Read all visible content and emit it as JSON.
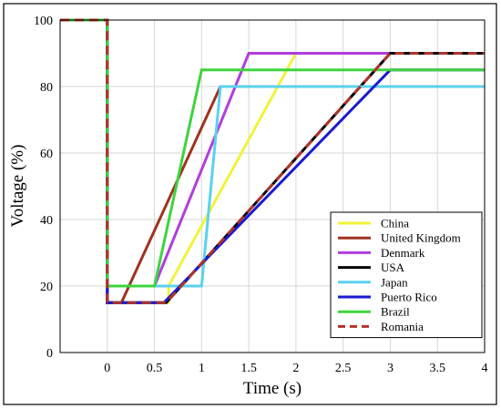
{
  "chart_data": {
    "type": "line",
    "xlabel": "Time (s)",
    "ylabel": "Voltage (%)",
    "xlim": [
      -0.5,
      4
    ],
    "ylim": [
      0,
      100
    ],
    "xticks": [
      {
        "value": 0,
        "label": "0"
      },
      {
        "value": 0.5,
        "label": "0.5"
      },
      {
        "value": 1,
        "label": "1"
      },
      {
        "value": 1.5,
        "label": "1.5"
      },
      {
        "value": 2,
        "label": "2"
      },
      {
        "value": 2.5,
        "label": "2.5"
      },
      {
        "value": 3,
        "label": "3"
      },
      {
        "value": 3.5,
        "label": "3.5"
      },
      {
        "value": 4,
        "label": "4"
      }
    ],
    "yticks": [
      {
        "value": 0,
        "label": "0"
      },
      {
        "value": 20,
        "label": "20"
      },
      {
        "value": 40,
        "label": "40"
      },
      {
        "value": 60,
        "label": "60"
      },
      {
        "value": 80,
        "label": "80"
      },
      {
        "value": 100,
        "label": "100"
      }
    ],
    "grid": true,
    "legend_position": "bottom-right",
    "series": [
      {
        "name": "China",
        "color": "#f2f23a",
        "dash": "solid",
        "points": [
          [
            -0.5,
            100
          ],
          [
            0,
            100
          ],
          [
            0,
            15
          ],
          [
            0.65,
            15
          ],
          [
            0.65,
            20
          ],
          [
            2.0,
            90
          ],
          [
            4.0,
            90
          ]
        ]
      },
      {
        "name": "United Kingdom",
        "color": "#a0321e",
        "dash": "solid",
        "points": [
          [
            -0.5,
            100
          ],
          [
            0,
            100
          ],
          [
            0,
            15
          ],
          [
            0.15,
            15
          ],
          [
            1.2,
            80
          ],
          [
            4.0,
            80
          ]
        ]
      },
      {
        "name": "Denmark",
        "color": "#b23ddb",
        "dash": "solid",
        "points": [
          [
            -0.5,
            100
          ],
          [
            0,
            100
          ],
          [
            0,
            20
          ],
          [
            0.5,
            20
          ],
          [
            1.5,
            90
          ],
          [
            4.0,
            90
          ]
        ]
      },
      {
        "name": "USA",
        "color": "#000000",
        "dash": "solid",
        "points": [
          [
            -0.5,
            100
          ],
          [
            0,
            100
          ],
          [
            0,
            15
          ],
          [
            0.625,
            15
          ],
          [
            3.0,
            90
          ],
          [
            4.0,
            90
          ]
        ]
      },
      {
        "name": "Japan",
        "color": "#5ad2ee",
        "dash": "solid",
        "points": [
          [
            -0.5,
            100
          ],
          [
            0,
            100
          ],
          [
            0,
            20
          ],
          [
            1.0,
            20
          ],
          [
            1.2,
            80
          ],
          [
            4.0,
            80
          ]
        ]
      },
      {
        "name": "Puerto Rico",
        "color": "#1a1ad2",
        "dash": "solid",
        "points": [
          [
            -0.5,
            100
          ],
          [
            0,
            100
          ],
          [
            0,
            15
          ],
          [
            0.6,
            15
          ],
          [
            3.0,
            85
          ],
          [
            4.0,
            85
          ]
        ]
      },
      {
        "name": "Brazil",
        "color": "#3ed43e",
        "dash": "solid",
        "points": [
          [
            -0.5,
            100
          ],
          [
            0,
            100
          ],
          [
            0,
            20
          ],
          [
            0.5,
            20
          ],
          [
            1.0,
            85
          ],
          [
            4.0,
            85
          ]
        ]
      },
      {
        "name": "Romania",
        "color": "#b0332a",
        "dash": "dashed",
        "points": [
          [
            -0.5,
            100
          ],
          [
            0,
            100
          ],
          [
            0,
            15
          ],
          [
            0.625,
            15
          ],
          [
            3.0,
            90
          ],
          [
            4.0,
            90
          ]
        ]
      }
    ]
  }
}
